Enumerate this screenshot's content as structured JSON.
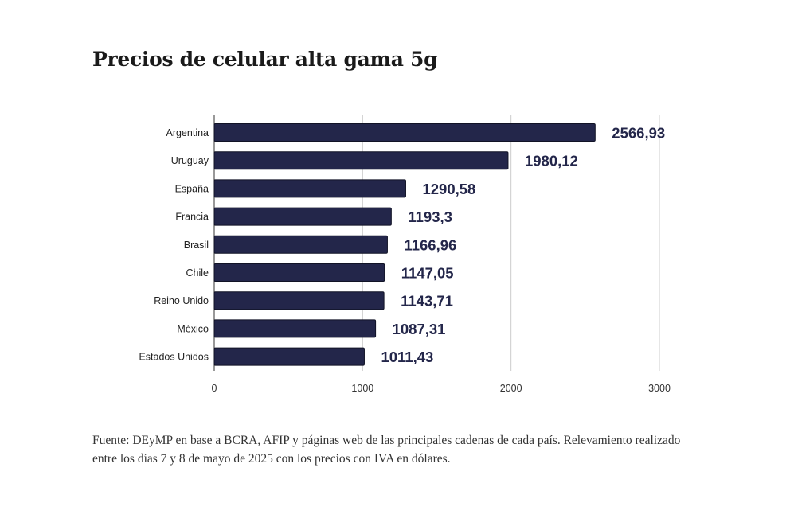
{
  "chart_data": {
    "type": "bar",
    "orientation": "horizontal",
    "title": "Precios de celular alta gama 5g",
    "categories": [
      "Argentina",
      "Uruguay",
      "España",
      "Francia",
      "Brasil",
      "Chile",
      "Reino Unido",
      "México",
      "Estados Unidos"
    ],
    "values": [
      2566.93,
      1980.12,
      1290.58,
      1193.3,
      1166.96,
      1147.05,
      1143.71,
      1087.31,
      1011.43
    ],
    "value_labels": [
      "2566,93",
      "1980,12",
      "1290,58",
      "1193,3",
      "1166,96",
      "1147,05",
      "1143,71",
      "1087,31",
      "1011,43"
    ],
    "xlabel": "",
    "ylabel": "",
    "xlim": [
      0,
      3000
    ],
    "xticks": [
      0,
      1000,
      2000,
      3000
    ],
    "xtick_labels": [
      "0",
      "1000",
      "2000",
      "3000"
    ],
    "grid": true,
    "legend": "none",
    "bar_color": "#23264a",
    "label_color": "#23264a"
  },
  "source_note": "Fuente: DEyMP en base a BCRA, AFIP y páginas web de las principales cadenas de cada país. Relevamiento realizado entre los días 7 y 8 de mayo de 2025 con los precios con IVA en dólares."
}
